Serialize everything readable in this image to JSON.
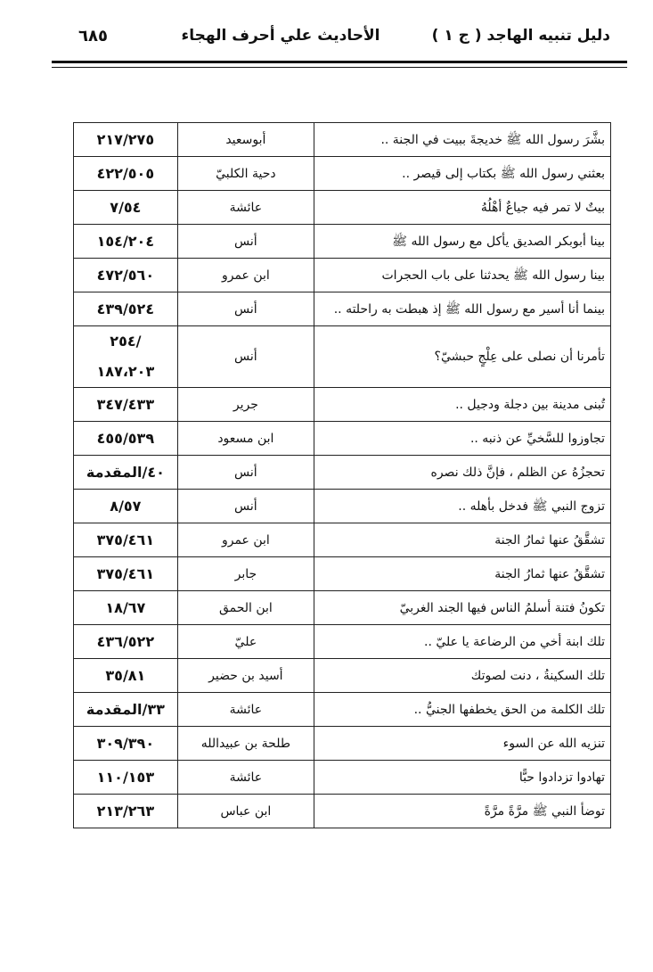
{
  "header": {
    "book": "دليل تنبيه الهاجد ( ج ١ )",
    "section": "الأحاديث علي أحرف الهجاء",
    "page_number": "٦٨٥"
  },
  "table": {
    "rows": [
      [
        "بشَّرَ رسول الله ﷺ خديجةَ ببيت في الجنة ..",
        "أبوسعيد",
        "٢١٧/٢٧٥"
      ],
      [
        "بعثني رسول الله ﷺ بكتاب إلى قيصر ..",
        "دحية الكلبيّ",
        "٤٢٢/٥٠٥"
      ],
      [
        "بيتٌ لا تمر فيه جياعٌ أهْلُهُ",
        "عائشة",
        "٧/٥٤"
      ],
      [
        "بينا أبوبكر الصديق يأكل مع رسول الله ﷺ",
        "أنس",
        "١٥٤/٢٠٤"
      ],
      [
        "بينا رسول الله ﷺ يحدثنا على باب الحجرات",
        "ابن عمرو",
        "٤٧٢/٥٦٠"
      ],
      [
        "بينما أنا أسير مع رسول الله ﷺ إذ هبطت به راحلته ..",
        "أنس",
        "٤٣٩/٥٢٤"
      ],
      [
        "تأمرنا أن نصلى على عِلْجٍ حبشيّ؟",
        "أنس",
        "/٢٥٤\n١٨٧،٢٠٣"
      ],
      [
        "تُبنى مدينة بين دجلة ودجيل ..",
        "جرير",
        "٣٤٧/٤٣٣"
      ],
      [
        "تجاوزوا للسَّخيِّ عن ذنبه ..",
        "ابن مسعود",
        "٤٥٥/٥٣٩"
      ],
      [
        "تحجزُهُ عن الظلم ، فإنَّ ذلك نصره",
        "أنس",
        "٤٠/المقدمة"
      ],
      [
        "تزوج النبي ﷺ فدخل بأهله ..",
        "أنس",
        "٨/٥٧"
      ],
      [
        "تشقَّقُ عنها ثمارُ الجنة",
        "ابن عمرو",
        "٣٧٥/٤٦١"
      ],
      [
        "تشقَّقُ عنها ثمارُ الجنة",
        "جابر",
        "٣٧٥/٤٦١"
      ],
      [
        "تكونُ فتنة أسلمُ الناس فيها الجند الغربيّ",
        "ابن الحمق",
        "١٨/٦٧"
      ],
      [
        "تلك ابنة أخي من الرضاعة يا عليّ ..",
        "عليّ",
        "٤٣٦/٥٢٢"
      ],
      [
        "تلك السكينةُ ، دنت لصوتك",
        "أسيد بن حضير",
        "٣٥/٨١"
      ],
      [
        "تلك الكلمة من الحق يخطفها الجنيُّ ..",
        "عائشة",
        "٣٣/المقدمة"
      ],
      [
        "تنزيه الله عن السوء",
        "طلحة بن عبيدالله",
        "٣٠٩/٣٩٠"
      ],
      [
        "تهادوا تزدادوا حبًّا",
        "عائشة",
        "١١٠/١٥٣"
      ],
      [
        "توضأ النبي ﷺ مرَّةً مرَّةً",
        "ابن عباس",
        "٢١٣/٢٦٣"
      ]
    ]
  }
}
